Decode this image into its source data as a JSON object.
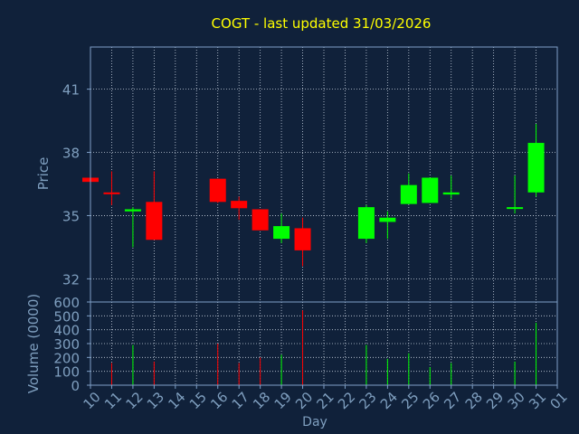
{
  "chart_data": {
    "type": "candlestick",
    "title": "COGT - last updated 31/03/2026",
    "xlabel": "Day",
    "ylabel_price": "Price",
    "ylabel_volume": "Volume (0000)",
    "price_ylim": [
      30.9,
      43.0
    ],
    "price_ticks": [
      32,
      35,
      38,
      41
    ],
    "volume_ylim": [
      0,
      600
    ],
    "volume_ticks": [
      0,
      100,
      200,
      300,
      400,
      500,
      600
    ],
    "x_tick_labels": [
      "10",
      "11",
      "12",
      "13",
      "14",
      "15",
      "16",
      "17",
      "18",
      "19",
      "20",
      "21",
      "22",
      "23",
      "24",
      "25",
      "26",
      "27",
      "28",
      "29",
      "30",
      "31",
      "01"
    ],
    "grid": true,
    "colors": {
      "background": "#10213a",
      "axis": "#7fa0c8",
      "grid": "#c8d2e0",
      "title": "#ffff00",
      "up": "#00ff00",
      "down": "#ff0000",
      "label": "#7f9fbf"
    },
    "candles": [
      {
        "day": "10",
        "open": 36.8,
        "high": 36.8,
        "low": 36.6,
        "close": 36.6,
        "volume": 0
      },
      {
        "day": "11",
        "open": 36.1,
        "high": 37.1,
        "low": 35.5,
        "close": 36.05,
        "volume": 160
      },
      {
        "day": "12",
        "open": 35.2,
        "high": 35.4,
        "low": 33.5,
        "close": 35.3,
        "volume": 290
      },
      {
        "day": "13",
        "open": 35.65,
        "high": 37.1,
        "low": 33.85,
        "close": 33.85,
        "volume": 170
      },
      {
        "day": "16",
        "open": 36.75,
        "high": 36.75,
        "low": 35.6,
        "close": 35.65,
        "volume": 300
      },
      {
        "day": "17",
        "open": 35.7,
        "high": 35.9,
        "low": 34.8,
        "close": 35.35,
        "volume": 160
      },
      {
        "day": "18",
        "open": 35.3,
        "high": 35.3,
        "low": 34.3,
        "close": 34.3,
        "volume": 200
      },
      {
        "day": "19",
        "open": 33.9,
        "high": 35.1,
        "low": 33.7,
        "close": 34.5,
        "volume": 220
      },
      {
        "day": "20",
        "open": 34.4,
        "high": 34.9,
        "low": 32.6,
        "close": 33.35,
        "volume": 540
      },
      {
        "day": "23",
        "open": 33.9,
        "high": 35.5,
        "low": 33.7,
        "close": 35.4,
        "volume": 290
      },
      {
        "day": "24",
        "open": 34.7,
        "high": 35.2,
        "low": 33.9,
        "close": 34.9,
        "volume": 190
      },
      {
        "day": "25",
        "open": 35.55,
        "high": 37.0,
        "low": 35.55,
        "close": 36.45,
        "volume": 230
      },
      {
        "day": "26",
        "open": 35.6,
        "high": 36.8,
        "low": 35.6,
        "close": 36.8,
        "volume": 130
      },
      {
        "day": "27",
        "open": 36.0,
        "high": 36.9,
        "low": 35.8,
        "close": 36.1,
        "volume": 160
      },
      {
        "day": "30",
        "open": 35.4,
        "high": 36.9,
        "low": 35.1,
        "close": 35.4,
        "volume": 170
      },
      {
        "day": "31",
        "open": 36.1,
        "high": 39.35,
        "low": 35.9,
        "close": 38.45,
        "volume": 450
      }
    ]
  }
}
